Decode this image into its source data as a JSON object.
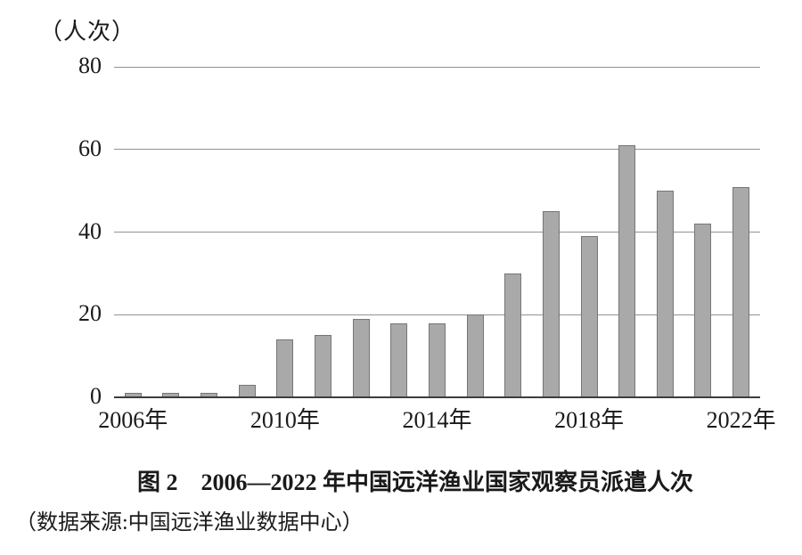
{
  "unit_label": "（人次）",
  "caption": "图 2　2006—2022 年中国远洋渔业国家观察员派遣人次",
  "source_note": "（数据来源:中国远洋渔业数据中心）",
  "chart_data": {
    "type": "bar",
    "title": "图 2　2006—2022 年中国远洋渔业国家观察员派遣人次",
    "ylabel": "（人次）",
    "source": "（数据来源:中国远洋渔业数据中心）",
    "categories": [
      "2006",
      "2007",
      "2008",
      "2009",
      "2010",
      "2011",
      "2012",
      "2013",
      "2014",
      "2015",
      "2016",
      "2017",
      "2018",
      "2019",
      "2020",
      "2021",
      "2022"
    ],
    "values": [
      1,
      1,
      1,
      3,
      14,
      15,
      19,
      18,
      18,
      20,
      30,
      45,
      39,
      61,
      50,
      42,
      51
    ],
    "x_tick_labels": [
      "2006年",
      "2010年",
      "2014年",
      "2018年",
      "2022年"
    ],
    "x_tick_years": [
      "2006",
      "2010",
      "2014",
      "2018",
      "2022"
    ],
    "y_ticks": [
      0,
      20,
      40,
      60,
      80
    ],
    "ylim": [
      0,
      80
    ],
    "grid": "horizontal-only",
    "legend_position": "none",
    "bar_color": "#a9a9a9",
    "bar_border_color": "#767676",
    "gridline_color": "#929292",
    "axis_color": "#3d3d3d"
  }
}
